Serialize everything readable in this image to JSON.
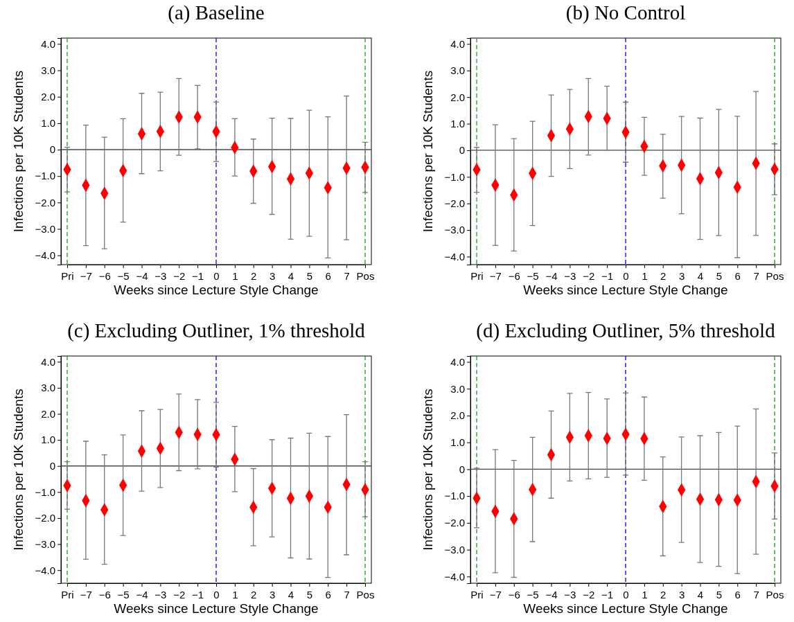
{
  "chart_data": [
    {
      "type": "scatter",
      "title": "(a) Baseline",
      "xlabel": "Weeks since Lecture Style Change",
      "ylabel": "Infections per 10K Students",
      "categories": [
        "Pri",
        "−7",
        "−6",
        "−5",
        "−4",
        "−3",
        "−2",
        "−1",
        "0",
        "1",
        "2",
        "3",
        "4",
        "5",
        "6",
        "7",
        "Pos"
      ],
      "ylim": [
        -4.35,
        4.22
      ],
      "yticks": [
        {
          "value": -4,
          "label": "−4.0"
        },
        {
          "value": -3,
          "label": "−3.0"
        },
        {
          "value": -2,
          "label": "−2.0"
        },
        {
          "value": -1,
          "label": "−1.0"
        },
        {
          "value": 0,
          "label": "0"
        },
        {
          "value": 1,
          "label": "1.0"
        },
        {
          "value": 2,
          "label": "2.0"
        },
        {
          "value": 3,
          "label": "3.0"
        },
        {
          "value": 4,
          "label": "4.0"
        }
      ],
      "marker": "diamond",
      "grid": false,
      "legend": false,
      "ref_lines": [
        {
          "axis": "y",
          "value": 0,
          "color": "#444444",
          "line_style": "solid"
        },
        {
          "axis": "x",
          "value": "Pri",
          "color": "#1a9a1a",
          "line_style": "dashed"
        },
        {
          "axis": "x",
          "value": "0",
          "color": "#0000ff",
          "line_style": "dashed"
        },
        {
          "axis": "x",
          "value": "Pos",
          "color": "#1a9a1a",
          "line_style": "dashed"
        }
      ],
      "series": [
        {
          "color": "#ff0000",
          "values": [
            -0.75,
            -1.35,
            -1.65,
            -0.79,
            0.6,
            0.69,
            1.23,
            1.23,
            0.68,
            0.08,
            -0.81,
            -0.64,
            -1.11,
            -0.89,
            -1.44,
            -0.7,
            -0.67
          ],
          "errors": [
            [
              -1.6,
              0.09
            ],
            [
              -3.63,
              0.93
            ],
            [
              -3.75,
              0.47
            ],
            [
              -2.74,
              1.17
            ],
            [
              -0.91,
              2.13
            ],
            [
              -0.8,
              2.17
            ],
            [
              -0.21,
              2.69
            ],
            [
              0.03,
              2.43
            ],
            [
              -0.45,
              1.8
            ],
            [
              -1.0,
              1.17
            ],
            [
              -2.03,
              0.4
            ],
            [
              -2.45,
              1.19
            ],
            [
              -3.39,
              1.18
            ],
            [
              -3.28,
              1.49
            ],
            [
              -4.1,
              1.24
            ],
            [
              -3.41,
              2.03
            ],
            [
              -1.62,
              0.28
            ]
          ]
        }
      ]
    },
    {
      "type": "scatter",
      "title": "(b) No Control",
      "xlabel": "Weeks since Lecture Style Change",
      "ylabel": "Infections per 10K Students",
      "categories": [
        "Pri",
        "−7",
        "−6",
        "−5",
        "−4",
        "−3",
        "−2",
        "−1",
        "0",
        "1",
        "2",
        "3",
        "4",
        "5",
        "6",
        "7",
        "Pos"
      ],
      "ylim": [
        -4.3,
        4.22
      ],
      "yticks": [
        {
          "value": -4,
          "label": "−4.0"
        },
        {
          "value": -3,
          "label": "−3.0"
        },
        {
          "value": -2,
          "label": "−2.0"
        },
        {
          "value": -1,
          "label": "−1.0"
        },
        {
          "value": 0,
          "label": "0"
        },
        {
          "value": 1,
          "label": "1.0"
        },
        {
          "value": 2,
          "label": "2.0"
        },
        {
          "value": 3,
          "label": "3.0"
        },
        {
          "value": 4,
          "label": "4.0"
        }
      ],
      "marker": "diamond",
      "grid": false,
      "legend": false,
      "ref_lines": [
        {
          "axis": "y",
          "value": 0,
          "color": "#444444",
          "line_style": "solid"
        },
        {
          "axis": "x",
          "value": "Pri",
          "color": "#1a9a1a",
          "line_style": "dashed"
        },
        {
          "axis": "x",
          "value": "0",
          "color": "#0000ff",
          "line_style": "dashed"
        },
        {
          "axis": "x",
          "value": "Pos",
          "color": "#1a9a1a",
          "line_style": "dashed"
        }
      ],
      "series": [
        {
          "color": "#ff0000",
          "values": [
            -0.73,
            -1.31,
            -1.68,
            -0.87,
            0.55,
            0.8,
            1.27,
            1.2,
            0.68,
            0.15,
            -0.59,
            -0.56,
            -1.07,
            -0.84,
            -1.39,
            -0.49,
            -0.71
          ],
          "errors": [
            [
              -1.58,
              0.11
            ],
            [
              -3.58,
              0.96
            ],
            [
              -3.79,
              0.44
            ],
            [
              -2.83,
              1.09
            ],
            [
              -0.98,
              2.08
            ],
            [
              -0.69,
              2.29
            ],
            [
              -0.18,
              2.7
            ],
            [
              0.01,
              2.41
            ],
            [
              -0.45,
              1.81
            ],
            [
              -0.94,
              1.24
            ],
            [
              -1.8,
              0.6
            ],
            [
              -2.39,
              1.27
            ],
            [
              -3.35,
              1.21
            ],
            [
              -3.21,
              1.54
            ],
            [
              -4.04,
              1.28
            ],
            [
              -3.2,
              2.21
            ],
            [
              -1.67,
              0.24
            ]
          ]
        }
      ]
    },
    {
      "type": "scatter",
      "title": "(c) Excluding Outliner, 1% threshold",
      "xlabel": "Weeks since Lecture Style Change",
      "ylabel": "Infections per 10K Students",
      "categories": [
        "Pri",
        "−7",
        "−6",
        "−5",
        "−4",
        "−3",
        "−2",
        "−1",
        "0",
        "1",
        "2",
        "3",
        "4",
        "5",
        "6",
        "7",
        "Pos"
      ],
      "ylim": [
        -4.5,
        4.22
      ],
      "yticks": [
        {
          "value": -4,
          "label": "−4.0"
        },
        {
          "value": -3,
          "label": "−3.0"
        },
        {
          "value": -2,
          "label": "−2.0"
        },
        {
          "value": -1,
          "label": "−1.0"
        },
        {
          "value": 0,
          "label": "0"
        },
        {
          "value": 1,
          "label": "1.0"
        },
        {
          "value": 2,
          "label": "2.0"
        },
        {
          "value": 3,
          "label": "3.0"
        },
        {
          "value": 4,
          "label": "4.0"
        }
      ],
      "marker": "diamond",
      "grid": false,
      "legend": false,
      "ref_lines": [
        {
          "axis": "y",
          "value": 0,
          "color": "#444444",
          "line_style": "solid"
        },
        {
          "axis": "x",
          "value": "Pri",
          "color": "#1a9a1a",
          "line_style": "dashed"
        },
        {
          "axis": "x",
          "value": "0",
          "color": "#0000ff",
          "line_style": "dashed"
        },
        {
          "axis": "x",
          "value": "Pos",
          "color": "#1a9a1a",
          "line_style": "dashed"
        }
      ],
      "series": [
        {
          "color": "#ff0000",
          "values": [
            -0.75,
            -1.33,
            -1.68,
            -0.74,
            0.57,
            0.68,
            1.29,
            1.21,
            1.2,
            0.26,
            -1.58,
            -0.86,
            -1.24,
            -1.16,
            -1.58,
            -0.71,
            -0.91
          ],
          "errors": [
            [
              -1.66,
              0.16
            ],
            [
              -3.58,
              0.95
            ],
            [
              -3.77,
              0.43
            ],
            [
              -2.67,
              1.19
            ],
            [
              -0.97,
              2.12
            ],
            [
              -0.83,
              2.17
            ],
            [
              -0.18,
              2.76
            ],
            [
              -0.11,
              2.55
            ],
            [
              -0.04,
              2.44
            ],
            [
              -0.99,
              1.52
            ],
            [
              -3.06,
              -0.1
            ],
            [
              -2.72,
              1.01
            ],
            [
              -3.53,
              1.07
            ],
            [
              -3.57,
              1.26
            ],
            [
              -4.28,
              1.13
            ],
            [
              -3.41,
              1.97
            ],
            [
              -1.95,
              0.16
            ]
          ]
        }
      ]
    },
    {
      "type": "scatter",
      "title": "(d) Excluding Outliner, 5% threshold",
      "xlabel": "Weeks since Lecture Style Change",
      "ylabel": "Infections per 10K Students",
      "categories": [
        "Pri",
        "−7",
        "−6",
        "−5",
        "−4",
        "−3",
        "−2",
        "−1",
        "0",
        "1",
        "2",
        "3",
        "4",
        "5",
        "6",
        "7",
        "Pos"
      ],
      "ylim": [
        -4.25,
        4.22
      ],
      "yticks": [
        {
          "value": -4,
          "label": "−4.0"
        },
        {
          "value": -3,
          "label": "−3.0"
        },
        {
          "value": -2,
          "label": "−2.0"
        },
        {
          "value": -1,
          "label": "−1.0"
        },
        {
          "value": 0,
          "label": "0"
        },
        {
          "value": 1,
          "label": "1.0"
        },
        {
          "value": 2,
          "label": "2.0"
        },
        {
          "value": 3,
          "label": "3.0"
        },
        {
          "value": 4,
          "label": "4.0"
        }
      ],
      "marker": "diamond",
      "grid": false,
      "legend": false,
      "ref_lines": [
        {
          "axis": "y",
          "value": 0,
          "color": "#444444",
          "line_style": "solid"
        },
        {
          "axis": "x",
          "value": "Pri",
          "color": "#1a9a1a",
          "line_style": "dashed"
        },
        {
          "axis": "x",
          "value": "0",
          "color": "#0000ff",
          "line_style": "dashed"
        },
        {
          "axis": "x",
          "value": "Pos",
          "color": "#1a9a1a",
          "line_style": "dashed"
        }
      ],
      "series": [
        {
          "color": "#ff0000",
          "values": [
            -1.08,
            -1.57,
            -1.85,
            -0.76,
            0.54,
            1.19,
            1.25,
            1.15,
            1.3,
            1.14,
            -1.39,
            -0.77,
            -1.12,
            -1.14,
            -1.15,
            -0.46,
            -0.63
          ],
          "errors": [
            [
              -2.18,
              0.04
            ],
            [
              -3.86,
              0.73
            ],
            [
              -4.03,
              0.33
            ],
            [
              -2.7,
              1.19
            ],
            [
              -1.08,
              2.17
            ],
            [
              -0.44,
              2.83
            ],
            [
              -0.36,
              2.86
            ],
            [
              -0.3,
              2.62
            ],
            [
              -0.22,
              2.84
            ],
            [
              -0.41,
              2.69
            ],
            [
              -3.23,
              0.46
            ],
            [
              -2.73,
              1.2
            ],
            [
              -3.48,
              1.25
            ],
            [
              -3.62,
              1.37
            ],
            [
              -3.89,
              1.61
            ],
            [
              -3.17,
              2.25
            ],
            [
              -1.86,
              0.61
            ]
          ]
        }
      ]
    }
  ]
}
